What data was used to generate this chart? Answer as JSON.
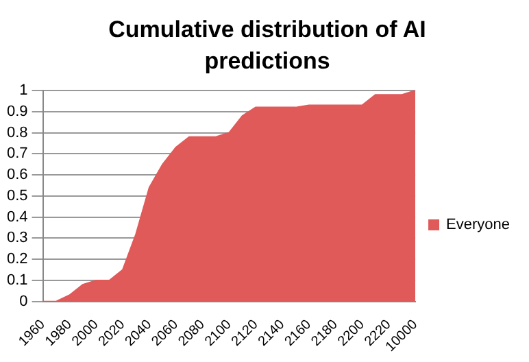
{
  "chart_data": {
    "type": "area",
    "title": "Cumulative distribution of AI predictions",
    "categories": [
      "1960",
      null,
      "1980",
      null,
      "2000",
      null,
      "2020",
      null,
      "2040",
      null,
      "2060",
      null,
      "2080",
      null,
      "2100",
      null,
      "2120",
      null,
      "2140",
      null,
      "2160",
      null,
      "2180",
      null,
      "2200",
      null,
      "2220",
      null,
      "10000"
    ],
    "series": [
      {
        "name": "Everyone",
        "color": "#e05a5a",
        "values": [
          0,
          0,
          0.03,
          0.08,
          0.1,
          0.1,
          0.15,
          0.32,
          0.54,
          0.65,
          0.73,
          0.78,
          0.78,
          0.78,
          0.8,
          0.88,
          0.92,
          0.92,
          0.92,
          0.92,
          0.93,
          0.93,
          0.93,
          0.93,
          0.93,
          0.98,
          0.98,
          0.98,
          1
        ]
      }
    ],
    "ylim": [
      0,
      1
    ],
    "yticks": [
      0,
      0.1,
      0.2,
      0.3,
      0.4,
      0.5,
      0.6,
      0.7,
      0.8,
      0.9,
      1
    ],
    "grid": "y",
    "legend": "right"
  }
}
